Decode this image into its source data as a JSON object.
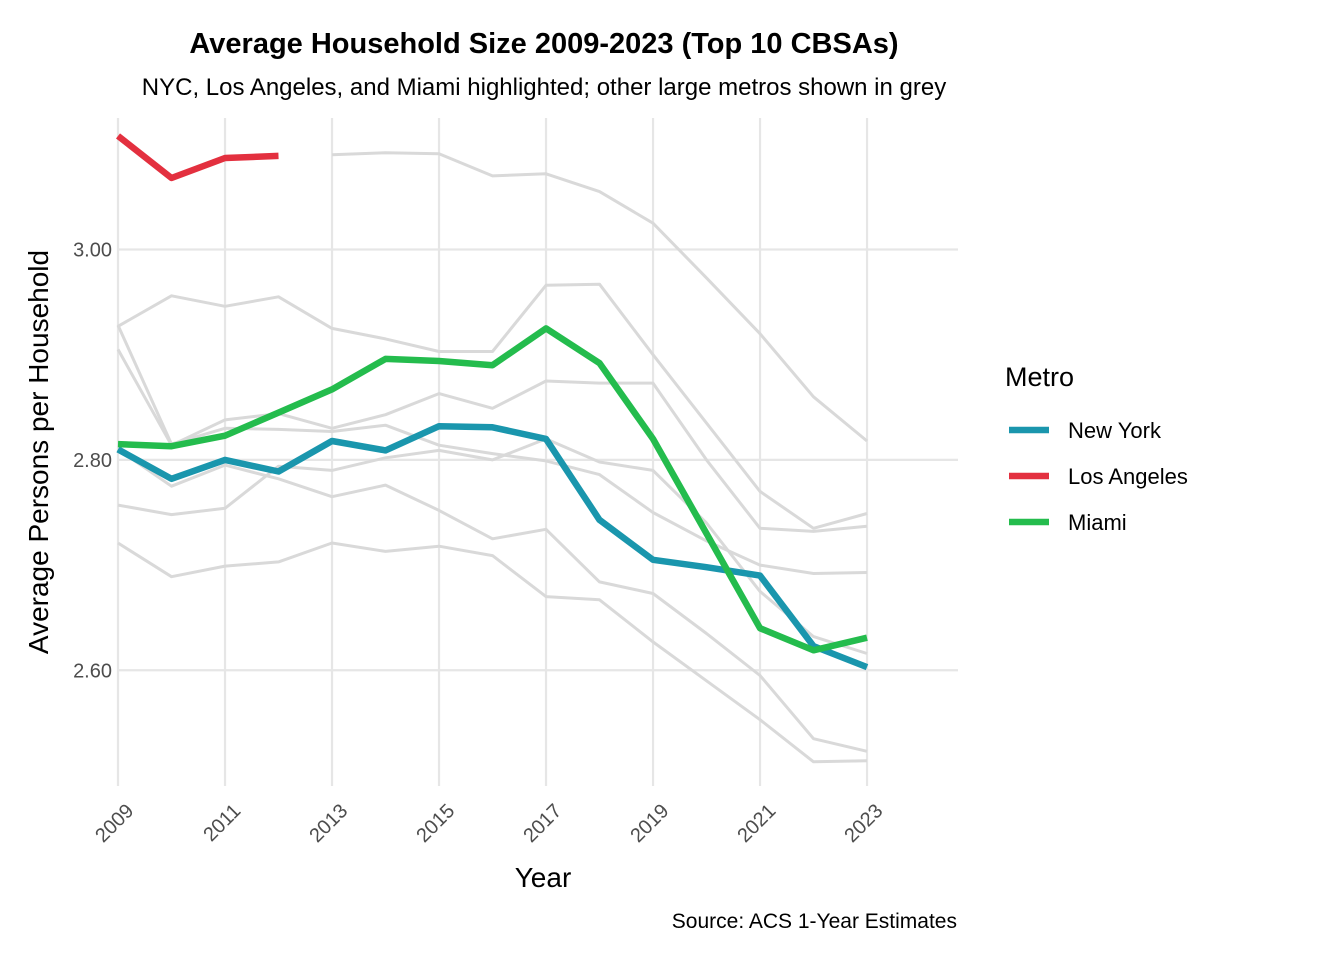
{
  "chart_data": {
    "type": "line",
    "title": "Average Household Size 2009-2023 (Top 10 CBSAs)",
    "subtitle": "NYC, Los Angeles, and Miami highlighted; other large metros shown in grey",
    "xlabel": "Year",
    "ylabel": "Average Persons per Household",
    "caption": "Source: ACS 1-Year Estimates",
    "xlim": [
      2009,
      2024.7
    ],
    "ylim": [
      2.49,
      3.125
    ],
    "x_ticks": [
      2009,
      2011,
      2013,
      2015,
      2017,
      2019,
      2021,
      2023
    ],
    "x_tick_labels": [
      "2009",
      "2011",
      "2013",
      "2015",
      "2017",
      "2019",
      "2021",
      "2023"
    ],
    "y_ticks": [
      2.6,
      2.8,
      3.0
    ],
    "y_tick_labels": [
      "2.60",
      "2.80",
      "3.00"
    ],
    "grid": true,
    "legend": {
      "title": "Metro",
      "position": "right",
      "entries": [
        "New York",
        "Los Angeles",
        "Miami"
      ]
    },
    "x": [
      2009,
      2010,
      2011,
      2012,
      2013,
      2014,
      2015,
      2016,
      2017,
      2018,
      2019,
      2020,
      2021,
      2022,
      2023
    ],
    "series": [
      {
        "name": "New York",
        "color": "#1a96ad",
        "highlight": true,
        "values": [
          2.81,
          2.782,
          2.8,
          2.789,
          2.818,
          2.809,
          2.832,
          2.831,
          2.82,
          2.743,
          2.705,
          2.698,
          2.69,
          2.623,
          2.603
        ]
      },
      {
        "name": "Los Angeles",
        "color": "#e3303f",
        "highlight": true,
        "values": [
          3.108,
          3.068,
          3.087,
          3.089,
          null,
          null,
          null,
          null,
          null,
          null,
          null,
          null,
          null,
          null,
          null
        ]
      },
      {
        "name": "Miami",
        "color": "#24bc4d",
        "highlight": true,
        "values": [
          2.815,
          2.813,
          2.823,
          2.845,
          2.867,
          2.896,
          2.894,
          2.89,
          2.925,
          2.892,
          2.82,
          2.73,
          2.64,
          2.619,
          2.631
        ]
      },
      {
        "color": "#d9d9d9",
        "highlight": false,
        "values": [
          null,
          null,
          null,
          null,
          3.09,
          3.092,
          3.091,
          3.07,
          3.072,
          3.055,
          3.025,
          2.973,
          2.92,
          2.86,
          2.818
        ]
      },
      {
        "color": "#d9d9d9",
        "highlight": false,
        "values": [
          2.927,
          2.956,
          2.946,
          2.955,
          2.925,
          2.915,
          2.903,
          2.903,
          2.966,
          2.967,
          2.9,
          2.835,
          2.77,
          2.735,
          2.749
        ]
      },
      {
        "color": "#d9d9d9",
        "highlight": false,
        "values": [
          2.905,
          2.814,
          2.838,
          2.844,
          2.83,
          2.843,
          2.863,
          2.849,
          2.875,
          2.873,
          2.873,
          2.8,
          2.735,
          2.732,
          2.737
        ]
      },
      {
        "color": "#d9d9d9",
        "highlight": false,
        "values": [
          2.928,
          2.815,
          2.83,
          2.829,
          2.827,
          2.833,
          2.814,
          2.806,
          2.799,
          2.786,
          2.75,
          2.723,
          2.7,
          2.692,
          2.693
        ]
      },
      {
        "color": "#d9d9d9",
        "highlight": false,
        "values": [
          2.757,
          2.748,
          2.754,
          2.794,
          2.79,
          2.802,
          2.809,
          2.8,
          2.82,
          2.798,
          2.79,
          2.74,
          2.675,
          2.632,
          2.616
        ]
      },
      {
        "color": "#d9d9d9",
        "highlight": false,
        "values": [
          2.81,
          2.775,
          2.795,
          2.782,
          2.765,
          2.776,
          2.752,
          2.725,
          2.734,
          2.684,
          2.673,
          2.635,
          2.595,
          2.535,
          2.523
        ]
      },
      {
        "color": "#d9d9d9",
        "highlight": false,
        "values": [
          2.721,
          2.689,
          2.699,
          2.703,
          2.721,
          2.713,
          2.718,
          2.709,
          2.67,
          2.667,
          2.627,
          2.59,
          2.553,
          2.513,
          2.514
        ]
      }
    ]
  }
}
